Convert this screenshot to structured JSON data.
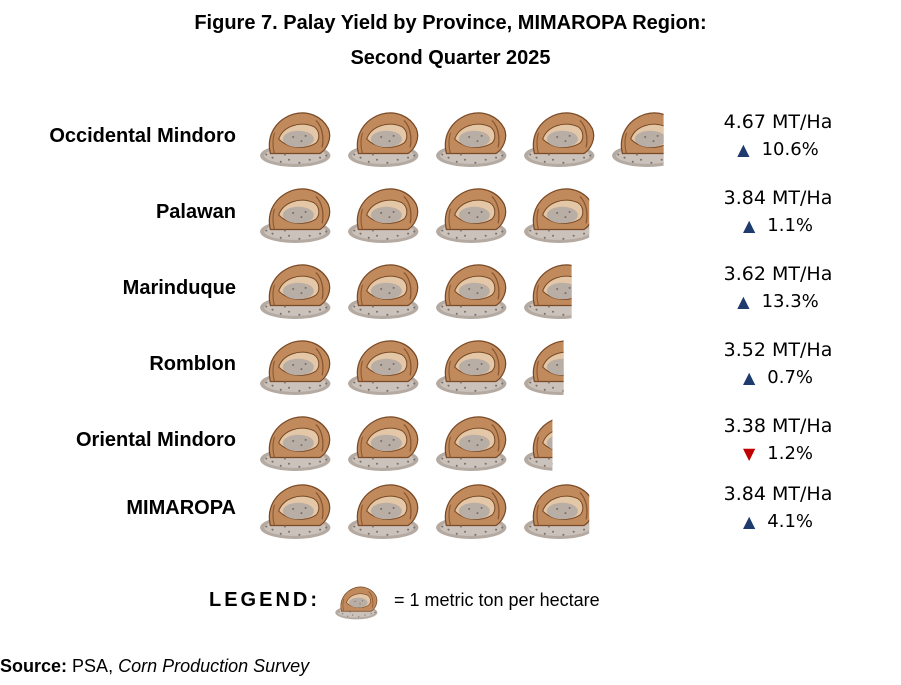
{
  "chart_data": {
    "type": "pictograph",
    "title": "Figure 7. Palay Yield by Province, MIMAROPA Region:",
    "subtitle": "Second Quarter 2025",
    "unit": "MT/Ha",
    "categories": [
      "Occidental Mindoro",
      "Palawan",
      "Marinduque",
      "Romblon",
      "Oriental Mindoro",
      "MIMAROPA"
    ],
    "values": [
      4.67,
      3.84,
      3.62,
      3.52,
      3.38,
      3.84
    ],
    "value_labels": [
      "4.67 MT/Ha",
      "3.84 MT/Ha",
      "3.62 MT/Ha",
      "3.52 MT/Ha",
      "3.38 MT/Ha",
      "3.84 MT/Ha"
    ],
    "change_labels": [
      "10.6%",
      "1.1%",
      "13.3%",
      "0.7%",
      "1.2%",
      "4.1%"
    ],
    "change_direction": [
      "up",
      "up",
      "up",
      "up",
      "down",
      "up"
    ],
    "icon": "rice-sack-icon",
    "legend": {
      "label": "LEGEND:",
      "text": "= 1 metric ton per hectare"
    }
  },
  "source": {
    "label": "Source:",
    "agency": "PSA,",
    "survey": "Corn Production Survey"
  },
  "colors": {
    "arrow_up": "#1f3a6e",
    "arrow_down": "#c00000",
    "sack": "#c08a5c",
    "grain": "#b5aaa2"
  }
}
